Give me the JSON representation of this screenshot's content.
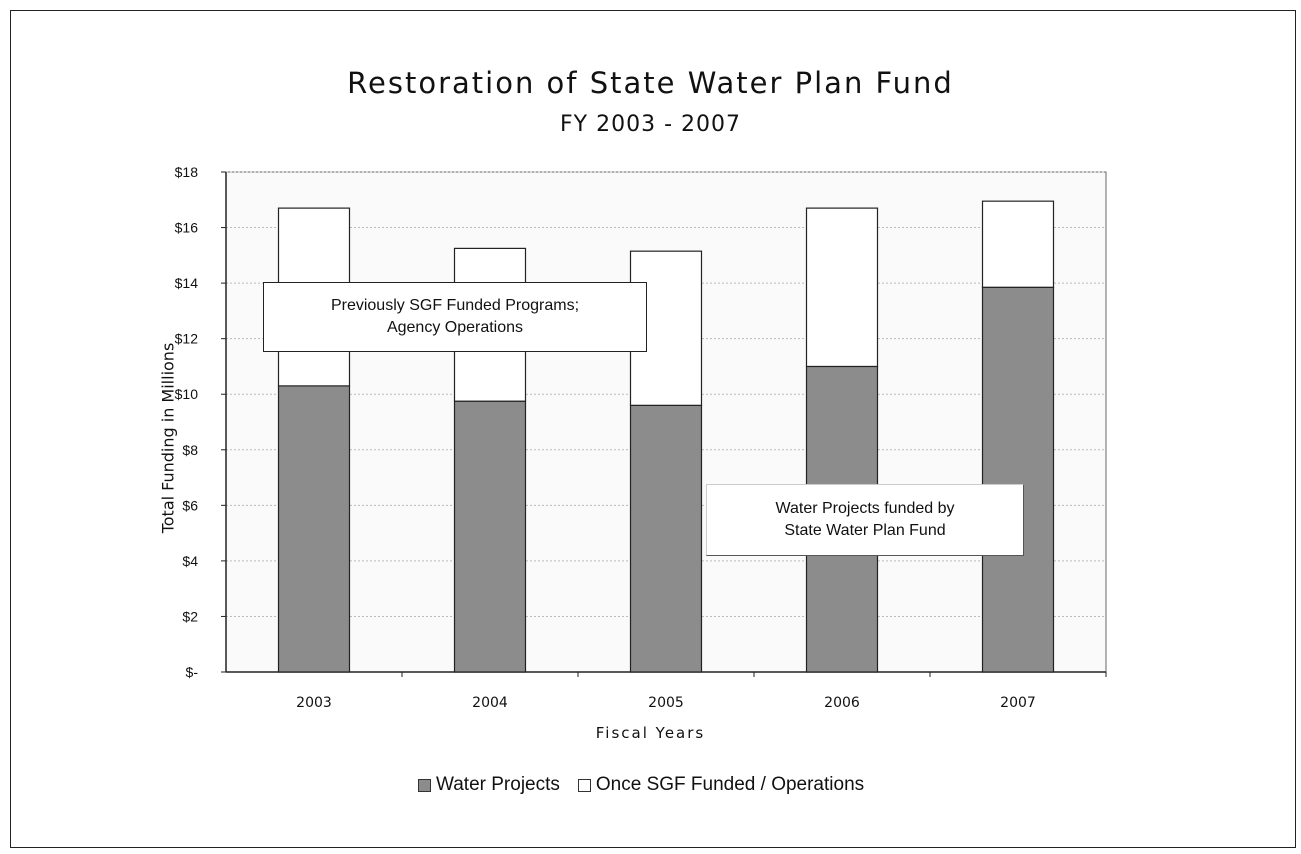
{
  "chart_data": {
    "type": "bar",
    "stacked": true,
    "title": "Restoration of State Water Plan Fund",
    "subtitle": "FY 2003 - 2007",
    "xlabel": "Fiscal Years",
    "ylabel": "Total Funding in Millions",
    "categories": [
      "2003",
      "2004",
      "2005",
      "2006",
      "2007"
    ],
    "series": [
      {
        "name": "Water Projects",
        "values": [
          10.3,
          9.75,
          9.6,
          11.0,
          13.85
        ]
      },
      {
        "name": "Once SGF Funded / Operations",
        "values": [
          6.4,
          5.5,
          5.55,
          5.7,
          3.1
        ]
      }
    ],
    "ylim": [
      0,
      18
    ],
    "yticks": [
      0,
      2,
      4,
      6,
      8,
      10,
      12,
      14,
      16,
      18
    ],
    "ytick_labels": [
      "$-",
      "$2",
      "$4",
      "$6",
      "$8",
      "$10",
      "$12",
      "$14",
      "$16",
      "$18"
    ],
    "grid": true,
    "legend_position": "bottom",
    "colors": {
      "water": "#8c8c8c",
      "sgf": "#ffffff",
      "axis": "#222222",
      "grid": "#bbbbbb"
    },
    "annotations": [
      {
        "lines": [
          "Previously SGF Funded Programs;",
          "Agency  Operations"
        ]
      },
      {
        "lines": [
          "Water Projects funded by",
          "State Water Plan Fund"
        ]
      }
    ]
  }
}
